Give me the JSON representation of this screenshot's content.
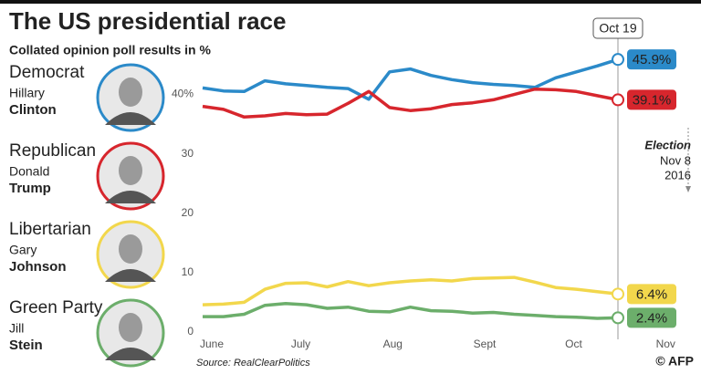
{
  "title": "The US presidential race",
  "subtitle": "Collated opinion poll results in %",
  "candidates": [
    {
      "party": "Democrat",
      "first": "Hillary"
    },
    {
      "party": "Republican",
      "first": "Donald"
    },
    {
      "party": "Libertarian",
      "first": "Gary"
    },
    {
      "party": "Green Party",
      "first": "Jill"
    }
  ],
  "source": "Source: RealClearPolitics",
  "credit": "© AFP",
  "chart_data": {
    "type": "line",
    "x": [
      0,
      7,
      14,
      21,
      28,
      35,
      42,
      49,
      56,
      63,
      70,
      77,
      84,
      91,
      98,
      105,
      112,
      119,
      126,
      133,
      140
    ],
    "xlim": [
      0,
      160
    ],
    "xticks": [
      {
        "value": 0,
        "label": "June"
      },
      {
        "value": 30,
        "label": "July"
      },
      {
        "value": 61,
        "label": "Aug"
      },
      {
        "value": 92,
        "label": "Sept"
      },
      {
        "value": 122,
        "label": "Oct"
      },
      {
        "value": 153,
        "label": "Nov"
      }
    ],
    "ylim": [
      0,
      47
    ],
    "yticks": [
      0,
      10,
      20,
      30,
      {
        "value": 40,
        "label": "40%"
      }
    ],
    "grid": false,
    "series": [
      {
        "name": "Clinton",
        "color": "#2b8ac9",
        "values": [
          41.1,
          40.6,
          40.5,
          42.3,
          41.8,
          41.5,
          41.2,
          41.0,
          39.2,
          43.8,
          44.3,
          43.2,
          42.5,
          42.0,
          41.7,
          41.5,
          41.2,
          42.8,
          43.8,
          44.8,
          45.9
        ],
        "value_labels": [
          null,
          null,
          null,
          null,
          null,
          null,
          null,
          null,
          null,
          null,
          null,
          null,
          null,
          null,
          null,
          null,
          null,
          null,
          null,
          null,
          "45.9%"
        ]
      },
      {
        "name": "Trump",
        "color": "#d7262d",
        "values": [
          38.0,
          37.5,
          36.2,
          36.4,
          36.8,
          36.6,
          36.7,
          38.5,
          40.5,
          37.8,
          37.3,
          37.6,
          38.3,
          38.6,
          39.1,
          40.0,
          40.9,
          40.8,
          40.5,
          39.8,
          39.1
        ],
        "value_labels": [
          null,
          null,
          null,
          null,
          null,
          null,
          null,
          null,
          null,
          null,
          null,
          null,
          null,
          null,
          null,
          null,
          null,
          null,
          null,
          null,
          "39.1%"
        ]
      },
      {
        "name": "Johnson",
        "color": "#f2d74c",
        "values": [
          4.6,
          4.7,
          5.0,
          7.2,
          8.2,
          8.3,
          7.6,
          8.5,
          7.8,
          8.3,
          8.6,
          8.8,
          8.6,
          9.0,
          9.1,
          9.2,
          8.4,
          7.5,
          7.2,
          6.8,
          6.4
        ],
        "value_labels": [
          null,
          null,
          null,
          null,
          null,
          null,
          null,
          null,
          null,
          null,
          null,
          null,
          null,
          null,
          null,
          null,
          null,
          null,
          null,
          null,
          "6.4%"
        ]
      },
      {
        "name": "Stein",
        "color": "#6cae6b",
        "values": [
          2.6,
          2.6,
          3.0,
          4.5,
          4.8,
          4.6,
          4.0,
          4.2,
          3.5,
          3.4,
          4.2,
          3.6,
          3.5,
          3.2,
          3.3,
          3.0,
          2.8,
          2.6,
          2.5,
          2.3,
          2.4
        ],
        "value_labels": [
          null,
          null,
          null,
          null,
          null,
          null,
          null,
          null,
          null,
          null,
          null,
          null,
          null,
          null,
          null,
          null,
          null,
          null,
          null,
          null,
          "2.4%"
        ]
      }
    ],
    "annotations": [
      {
        "x": 140,
        "text": "Oct 19"
      },
      {
        "x": 160,
        "text": "Election",
        "lines": [
          "Nov 8",
          "2016"
        ]
      }
    ]
  }
}
